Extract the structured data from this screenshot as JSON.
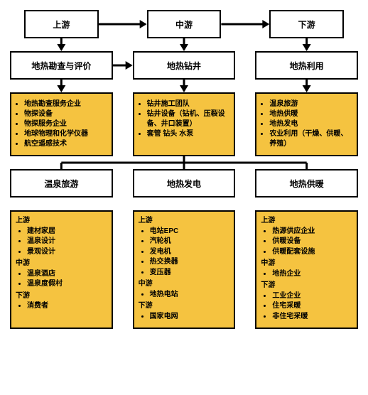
{
  "type": "flowchart",
  "colors": {
    "background": "#ffffff",
    "box_border": "#000000",
    "box_fill": "#ffffff",
    "highlight_fill": "#f5c340",
    "arrow": "#000000"
  },
  "typography": {
    "title_fontsize_pt": 12,
    "list_fontsize_pt": 10,
    "weight": "bold",
    "family": "Microsoft YaHei / sans-serif"
  },
  "row1": {
    "a": "上游",
    "b": "中游",
    "c": "下游"
  },
  "row2": {
    "a": "地热勘查与评价",
    "b": "地热钻井",
    "c": "地热利用"
  },
  "row3": {
    "a": [
      "地热勘查服务企业",
      "物探设备",
      "物探服务企业",
      "地球物理和化学仪器",
      "航空遥感技术"
    ],
    "b": [
      "钻井施工团队",
      "钻井设备（钻机、压裂设备、井口装置）",
      "套管 钻头 水泵"
    ],
    "c": [
      "温泉旅游",
      "地热供暖",
      "地热发电",
      "农业利用（干燥、供暖、养殖）"
    ]
  },
  "row4": {
    "a": "温泉旅游",
    "b": "地热发电",
    "c": "地热供暖"
  },
  "row5": {
    "a": {
      "s1_title": "上游",
      "s1": [
        "建材家居",
        "温泉设计",
        "景观设计"
      ],
      "s2_title": "中游",
      "s2": [
        "温泉酒店",
        "温泉度假村"
      ],
      "s3_title": "下游",
      "s3": [
        "消费者"
      ]
    },
    "b": {
      "s1_title": "上游",
      "s1": [
        "电站EPC",
        "汽轮机",
        "发电机",
        "热交换器",
        "变压器"
      ],
      "s2_title": "中游",
      "s2": [
        "地热电站"
      ],
      "s3_title": "下游",
      "s3": [
        "国家电网"
      ]
    },
    "c": {
      "s1_title": "上游",
      "s1": [
        "热源供应企业",
        "供暖设备",
        "供暖配套设施"
      ],
      "s2_title": "中游",
      "s2": [
        "地热企业"
      ],
      "s3_title": "下游",
      "s3": [
        "工业企业",
        "住宅采暖",
        "非住宅采暖"
      ]
    }
  },
  "arrows": [
    {
      "from": "r1a",
      "to": "r1b",
      "dir": "right"
    },
    {
      "from": "r1b",
      "to": "r1c",
      "dir": "right"
    },
    {
      "from": "r1a",
      "to": "r2a",
      "dir": "down"
    },
    {
      "from": "r1b",
      "to": "r2b",
      "dir": "down"
    },
    {
      "from": "r1c",
      "to": "r2c",
      "dir": "down"
    },
    {
      "from": "r2a",
      "to": "r2b",
      "dir": "right"
    },
    {
      "from": "r2a",
      "to": "r3a",
      "dir": "down"
    },
    {
      "from": "r2b",
      "to": "r3b",
      "dir": "down"
    },
    {
      "from": "r2c",
      "to": "r3c",
      "dir": "down"
    },
    {
      "from": "r3b",
      "to": "bracket",
      "dir": "down-split3",
      "targets": [
        "r4a",
        "r4b",
        "r4c"
      ]
    }
  ]
}
